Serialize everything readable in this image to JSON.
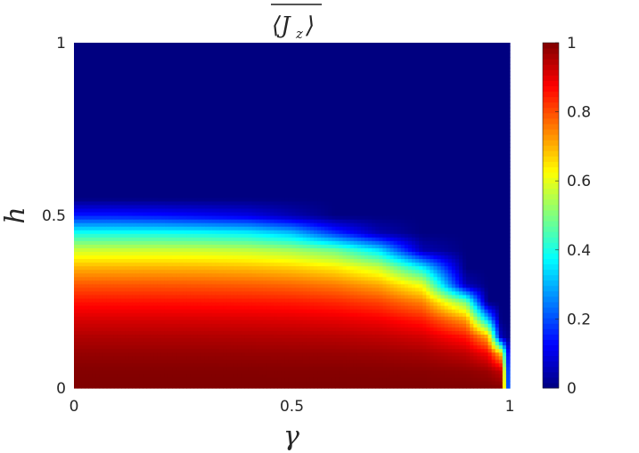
{
  "chart_data": {
    "type": "heatmap",
    "title": "⟨J_z⟩ (overlined)",
    "title_parts": {
      "main": "⟨J",
      "sub": "z",
      "close": "⟩"
    },
    "xlabel": "γ",
    "ylabel": "h",
    "xlim": [
      0,
      1
    ],
    "ylim": [
      0,
      1
    ],
    "xticks": [
      "0",
      "0.5",
      "1"
    ],
    "xtick_values": [
      0,
      0.5,
      1
    ],
    "yticks": [
      "0",
      "0.5",
      "1"
    ],
    "ytick_values": [
      0,
      0.5,
      1
    ],
    "colormap": "jet",
    "clim": [
      0,
      1
    ],
    "colorbar_ticks": [
      "0",
      "0.2",
      "0.4",
      "0.6",
      "0.8",
      "1"
    ],
    "colorbar_tick_values": [
      0,
      0.2,
      0.4,
      0.6,
      0.8,
      1
    ],
    "grid": false,
    "gamma": [
      0,
      0.1,
      0.2,
      0.3,
      0.4,
      0.5,
      0.6,
      0.7,
      0.8,
      0.9,
      0.95,
      0.98,
      1.0
    ],
    "h": [
      0,
      0.05,
      0.1,
      0.15,
      0.2,
      0.25,
      0.3,
      0.35,
      0.4,
      0.45,
      0.5,
      0.55,
      0.6,
      0.65,
      0.7,
      0.75,
      0.8,
      0.85,
      0.9,
      0.95,
      1.0
    ],
    "values_by_gamma": [
      [
        1,
        0.995,
        0.979,
        0.952,
        0.913,
        0.86,
        0.791,
        0.7,
        0.578,
        0.396,
        0.15,
        0,
        0,
        0,
        0,
        0,
        0,
        0,
        0,
        0,
        0
      ],
      [
        1,
        0.995,
        0.979,
        0.952,
        0.913,
        0.86,
        0.791,
        0.7,
        0.578,
        0.396,
        0.15,
        0,
        0,
        0,
        0,
        0,
        0,
        0,
        0,
        0,
        0
      ],
      [
        1,
        0.995,
        0.979,
        0.952,
        0.913,
        0.86,
        0.791,
        0.7,
        0.578,
        0.394,
        0.14,
        0,
        0,
        0,
        0,
        0,
        0,
        0,
        0,
        0,
        0
      ],
      [
        1,
        0.995,
        0.979,
        0.952,
        0.912,
        0.858,
        0.789,
        0.697,
        0.574,
        0.385,
        0.12,
        0,
        0,
        0,
        0,
        0,
        0,
        0,
        0,
        0,
        0
      ],
      [
        1,
        0.995,
        0.978,
        0.95,
        0.91,
        0.855,
        0.784,
        0.69,
        0.563,
        0.369,
        0.1,
        0,
        0,
        0,
        0,
        0,
        0,
        0,
        0,
        0,
        0
      ],
      [
        1,
        0.994,
        0.977,
        0.948,
        0.906,
        0.85,
        0.774,
        0.674,
        0.536,
        0.314,
        0.05,
        0,
        0,
        0,
        0,
        0,
        0,
        0,
        0,
        0,
        0
      ],
      [
        1,
        0.994,
        0.976,
        0.945,
        0.899,
        0.837,
        0.754,
        0.643,
        0.484,
        0.173,
        0,
        0,
        0,
        0,
        0,
        0,
        0,
        0,
        0,
        0,
        0
      ],
      [
        1,
        0.993,
        0.972,
        0.936,
        0.884,
        0.811,
        0.711,
        0.573,
        0.349,
        0.05,
        0,
        0,
        0,
        0,
        0,
        0,
        0,
        0,
        0,
        0,
        0
      ],
      [
        1,
        0.991,
        0.964,
        0.917,
        0.847,
        0.747,
        0.603,
        0.365,
        0.05,
        0,
        0,
        0,
        0,
        0,
        0,
        0,
        0,
        0,
        0,
        0,
        0
      ],
      [
        1,
        0.985,
        0.937,
        0.853,
        0.717,
        0.491,
        0.05,
        0,
        0,
        0,
        0,
        0,
        0,
        0,
        0,
        0,
        0,
        0,
        0,
        0,
        0
      ],
      [
        1,
        0.972,
        0.88,
        0.703,
        0.318,
        0,
        0,
        0,
        0,
        0,
        0,
        0,
        0,
        0,
        0,
        0,
        0,
        0,
        0,
        0,
        0
      ],
      [
        1,
        0.931,
        0.683,
        0.05,
        0,
        0,
        0,
        0,
        0,
        0,
        0,
        0,
        0,
        0,
        0,
        0,
        0,
        0,
        0,
        0,
        0
      ],
      [
        0,
        0,
        0,
        0,
        0,
        0,
        0,
        0,
        0,
        0,
        0,
        0,
        0,
        0,
        0,
        0,
        0,
        0,
        0,
        0,
        0
      ]
    ]
  }
}
